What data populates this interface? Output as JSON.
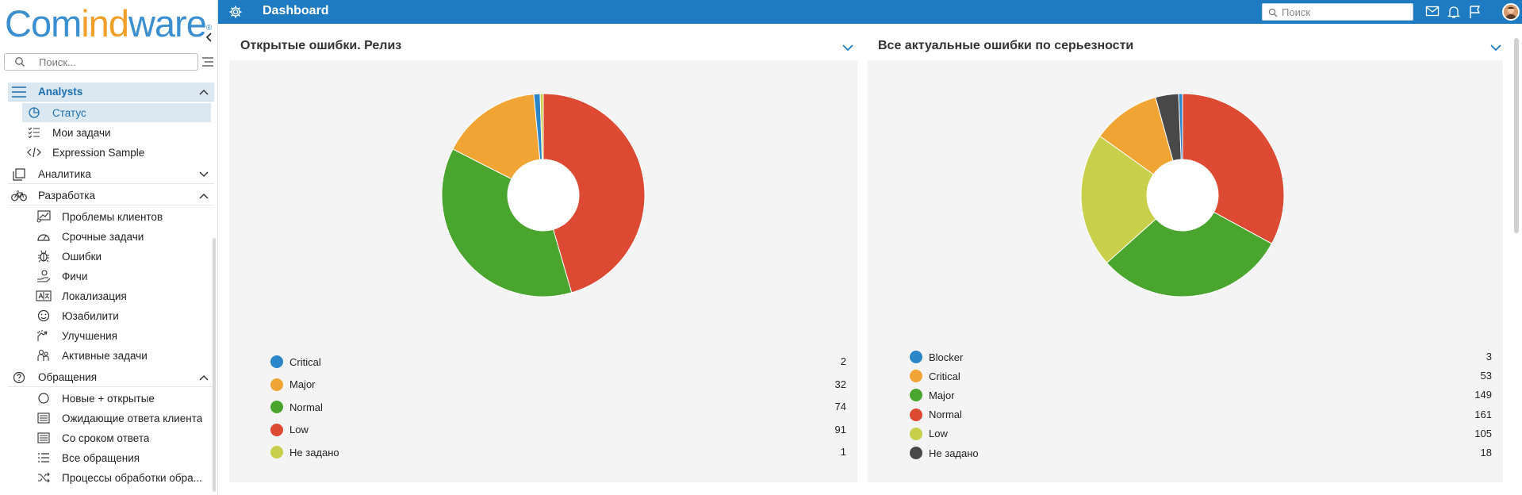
{
  "sidebar": {
    "logo": {
      "part1": "Com",
      "part2": "ind",
      "part3": "ware",
      "registered": "®"
    },
    "search_placeholder": "Поиск...",
    "groups": [
      {
        "label": "Analysts",
        "icon": "hamburger-icon",
        "expanded": true,
        "items": [
          {
            "label": "Статус",
            "icon": "chart-pie-icon",
            "selected": true
          },
          {
            "label": "Мои задачи",
            "icon": "checklist-icon"
          },
          {
            "label": "Expression Sample",
            "icon": "code-icon"
          }
        ]
      },
      {
        "label": "Аналитика",
        "icon": "copy-icon",
        "expanded": false,
        "items": []
      },
      {
        "label": "Разработка",
        "icon": "bicycle-icon",
        "expanded": true,
        "items": [
          {
            "label": "Проблемы клиентов",
            "icon": "chart-board-icon"
          },
          {
            "label": "Срочные задачи",
            "icon": "speedometer-icon"
          },
          {
            "label": "Ошибки",
            "icon": "bug-icon"
          },
          {
            "label": "Фичи",
            "icon": "hand-coin-icon"
          },
          {
            "label": "Локализация",
            "icon": "translate-icon"
          },
          {
            "label": "Юзабилити",
            "icon": "smiley-icon"
          },
          {
            "label": "Улучшения",
            "icon": "hand-sparkle-icon"
          },
          {
            "label": "Активные задачи",
            "icon": "people-icon"
          }
        ]
      },
      {
        "label": "Обращения",
        "icon": "question-icon",
        "expanded": true,
        "items": [
          {
            "label": "Новые + открытые",
            "icon": "circle-icon"
          },
          {
            "label": "Ожидающие ответа клиента",
            "icon": "list-box-icon"
          },
          {
            "label": "Со сроком ответа",
            "icon": "list-box-icon"
          },
          {
            "label": "Все обращения",
            "icon": "list-icon"
          },
          {
            "label": "Процессы обработки обра...",
            "icon": "shuffle-icon"
          }
        ]
      }
    ]
  },
  "topbar": {
    "title": "Dashboard",
    "search_placeholder": "Поиск",
    "icons": [
      "gear-icon",
      "search-icon",
      "mail-icon",
      "bell-icon",
      "flag-icon",
      "avatar"
    ]
  },
  "colors": {
    "topbar": "#1f7bc1",
    "selected_bg": "#dbe8f2",
    "widget_bg": "#f4f4f4"
  },
  "widgets": [
    {
      "title": "Открытые ошибки. Релиз"
    },
    {
      "title": "Все актуальные ошибки по серьезности"
    }
  ],
  "chart_data": [
    {
      "type": "pie",
      "title": "Открытые ошибки. Релиз",
      "donut": true,
      "legend_position": "bottom",
      "categories": [
        "Critical",
        "Major",
        "Normal",
        "Low",
        "Не задано"
      ],
      "values": [
        2,
        32,
        74,
        91,
        1
      ],
      "colors": [
        "#2a85c9",
        "#f0a433",
        "#4aa52f",
        "#dd4a33",
        "#c8cf4a"
      ],
      "draw_order": [
        "Low",
        "Normal",
        "Major",
        "Critical",
        "Не задано"
      ]
    },
    {
      "type": "pie",
      "title": "Все актуальные ошибки по серьезности",
      "donut": true,
      "legend_position": "bottom",
      "categories": [
        "Blocker",
        "Critical",
        "Major",
        "Normal",
        "Low",
        "Не задано"
      ],
      "values": [
        3,
        53,
        149,
        161,
        105,
        18
      ],
      "colors": [
        "#2a85c9",
        "#f0a433",
        "#4aa52f",
        "#dd4a33",
        "#c8cf4a",
        "#484848"
      ],
      "draw_order": [
        "Normal",
        "Major",
        "Low",
        "Critical",
        "Не задано",
        "Blocker"
      ]
    }
  ]
}
